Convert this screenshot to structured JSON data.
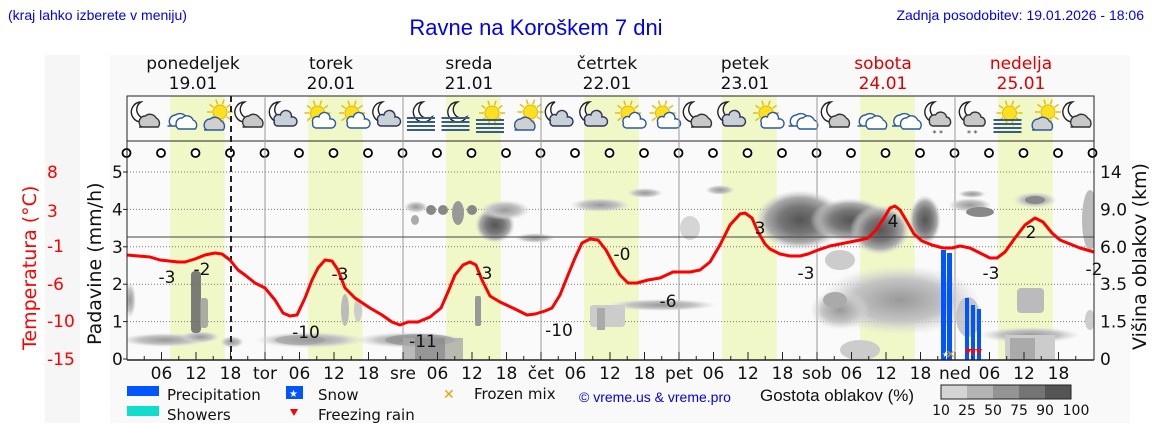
{
  "header": {
    "location_note": "(kraj lahko izberete v meniju)",
    "title": "Ravne na Koroškem 7 dni",
    "last_update": "Zadnja posodobitev: 19.01.2026 - 18:06"
  },
  "days": [
    {
      "name": "ponedeljek",
      "date": "19.01",
      "weekend": false
    },
    {
      "name": "torek",
      "date": "20.01",
      "weekend": false
    },
    {
      "name": "sreda",
      "date": "21.01",
      "weekend": false
    },
    {
      "name": "četrtek",
      "date": "22.01",
      "weekend": false
    },
    {
      "name": "petek",
      "date": "23.01",
      "weekend": false
    },
    {
      "name": "sobota",
      "date": "24.01",
      "weekend": true
    },
    {
      "name": "nedelja",
      "date": "25.01",
      "weekend": true
    }
  ],
  "x_tick_labels": [
    "06",
    "12",
    "18",
    "tor",
    "06",
    "12",
    "18",
    "sre",
    "06",
    "12",
    "18",
    "čet",
    "06",
    "12",
    "18",
    "pet",
    "06",
    "12",
    "18",
    "sob",
    "06",
    "12",
    "18",
    "ned",
    "06",
    "12",
    "18"
  ],
  "weather_icons": [
    "night-cloudy",
    "cloudy",
    "partly-cloudy-day",
    "night-cloudy",
    "night-partly-cloudy",
    "sun-few-clouds",
    "sun-few-clouds",
    "night-partly-cloudy",
    "night-fog",
    "night-fog",
    "sun-fog",
    "partly-cloudy-day",
    "night-partly-cloudy",
    "night-partly-cloudy",
    "sun-few-clouds",
    "sun-few-clouds",
    "night-cloudy",
    "night-partly-cloudy",
    "sun-few-clouds",
    "cloudy",
    "night-cloudy",
    "cloudy",
    "cloudy",
    "night-snow",
    "night-snow",
    "sun-fog",
    "partly-cloudy-day",
    "night-cloudy"
  ],
  "axes": {
    "left_temp_label": "Temperatura (°C)",
    "left_temp_ticks": [
      "8",
      "3",
      "-1",
      "-6",
      "-10",
      "-15"
    ],
    "left_precip_label": "Padavine (mm/h)",
    "left_precip_ticks": [
      "0",
      "1",
      "2",
      "3",
      "4",
      "5"
    ],
    "right_label": "Višina oblakov (km)",
    "right_ticks": [
      "0",
      "1.5",
      "3.5",
      "6.0",
      "9.0",
      "14"
    ]
  },
  "legend": {
    "precipitation": "Precipitation",
    "showers": "Showers",
    "snow": "Snow",
    "freezing_rain": "Freezing rain",
    "frozen_mix": "Frozen mix",
    "copyright": "© vreme.us & vreme.pro",
    "cloud_density_label": "Gostota oblakov (%)",
    "cloud_density_ticks": [
      "10",
      "25",
      "50",
      "75",
      "90",
      "100"
    ]
  },
  "colors": {
    "temperature": "#ff0000",
    "precipitation": "#0055ff",
    "showers": "#11ddcc",
    "daylight": "#f0f8c8",
    "title": "#0000ee"
  },
  "chart_data": {
    "type": "line",
    "title": "Ravne na Koroškem 7 dni",
    "xlabel": "",
    "ylabel": "Padavine (mm/h) / Temperatura (°C)",
    "y2label": "Višina oblakov (km)",
    "ylim": [
      0,
      5
    ],
    "temp_ylim": [
      -15,
      8
    ],
    "grid": true,
    "series": [
      {
        "name": "Temperatura (°C)",
        "hours_from_start": [
          0,
          12,
          24,
          36,
          48,
          60,
          72,
          84,
          96,
          108,
          120,
          132,
          144,
          156,
          168
        ],
        "values": [
          -2,
          -2,
          -3,
          -3,
          -9,
          -3,
          -10,
          -3,
          -10,
          -1,
          -5,
          -5,
          -3,
          3,
          -3
        ],
        "labeled_values": [
          {
            "day": "19.01",
            "label": "-3"
          },
          {
            "day": "19.01",
            "label": "-2"
          },
          {
            "day": "20.01",
            "label": "-10"
          },
          {
            "day": "20.01",
            "label": "-3"
          },
          {
            "day": "21.01",
            "label": "-11"
          },
          {
            "day": "21.01",
            "label": "-3"
          },
          {
            "day": "22.01",
            "label": "-10"
          },
          {
            "day": "22.01",
            "label": "-0"
          },
          {
            "day": "22.01",
            "label": "-6"
          },
          {
            "day": "23.01",
            "label": "3"
          },
          {
            "day": "24.01",
            "label": "-3"
          },
          {
            "day": "24.01",
            "label": "4"
          },
          {
            "day": "25.01",
            "label": "-3"
          },
          {
            "day": "25.01",
            "label": "2"
          },
          {
            "day": "25.01",
            "label": "-2"
          }
        ]
      },
      {
        "name": "Precipitation (mm/h)",
        "points": [
          {
            "time": "24.01 ~15h",
            "value": 2.9
          },
          {
            "time": "24.01 ~16h",
            "value": 2.8
          },
          {
            "time": "25.01 ~02h",
            "value": 1.6
          },
          {
            "time": "25.01 ~03h",
            "value": 1.4
          },
          {
            "time": "25.01 ~04h",
            "value": 1.3
          }
        ]
      }
    ],
    "precip_types": [
      {
        "time": "24.01 ~16h",
        "type": "Snow"
      },
      {
        "time": "24.01 ~16h",
        "type": "Frozen mix"
      },
      {
        "time": "25.01 ~02-04h",
        "type": "Freezing rain"
      }
    ],
    "x_ticks": [
      "06",
      "12",
      "18",
      "tor",
      "06",
      "12",
      "18",
      "sre",
      "06",
      "12",
      "18",
      "čet",
      "06",
      "12",
      "18",
      "pet",
      "06",
      "12",
      "18",
      "sob",
      "06",
      "12",
      "18",
      "ned",
      "06",
      "12",
      "18"
    ],
    "legend_position": "bottom"
  }
}
